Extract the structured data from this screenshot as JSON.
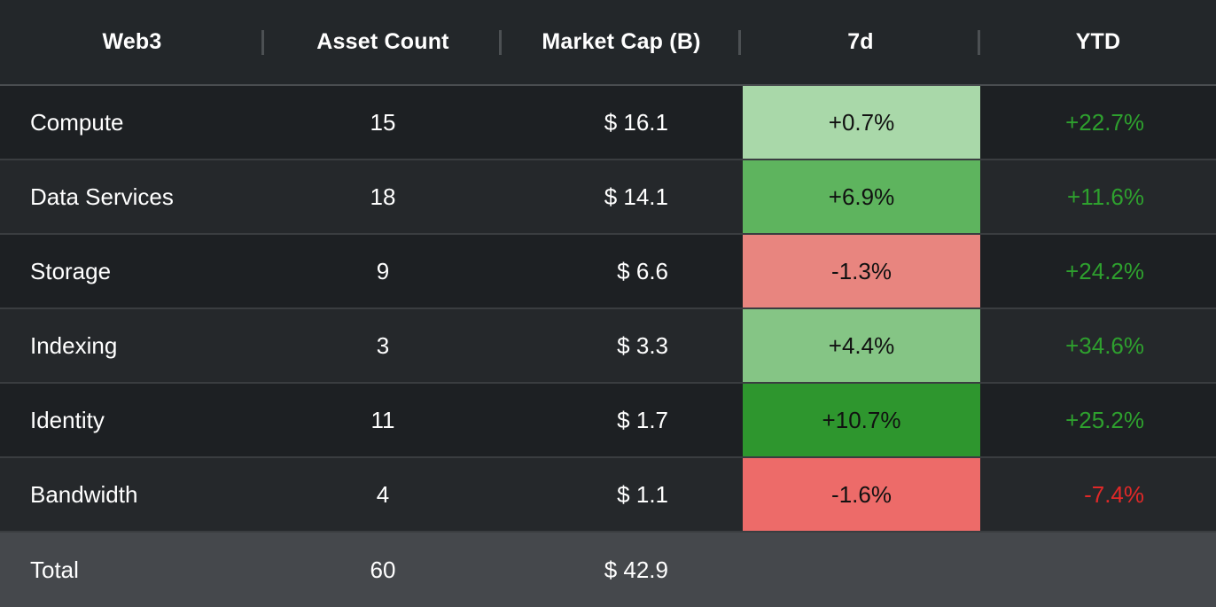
{
  "table": {
    "headers": [
      "Web3",
      "Asset Count",
      "Market Cap (B)",
      "7d",
      "YTD"
    ],
    "rows": [
      {
        "name": "Compute",
        "count": "15",
        "cap": "$ 16.1",
        "d7": "+0.7%",
        "d7_color": "#a9d8a9",
        "ytd": "+22.7%",
        "ytd_sign": "pos"
      },
      {
        "name": "Data Services",
        "count": "18",
        "cap": "$ 14.1",
        "d7": "+6.9%",
        "d7_color": "#5eb45e",
        "ytd": "+11.6%",
        "ytd_sign": "pos"
      },
      {
        "name": "Storage",
        "count": "9",
        "cap": "$ 6.6",
        "d7": "-1.3%",
        "d7_color": "#e8857f",
        "ytd": "+24.2%",
        "ytd_sign": "pos"
      },
      {
        "name": "Indexing",
        "count": "3",
        "cap": "$ 3.3",
        "d7": "+4.4%",
        "d7_color": "#85c585",
        "ytd": "+34.6%",
        "ytd_sign": "pos"
      },
      {
        "name": "Identity",
        "count": "11",
        "cap": "$ 1.7",
        "d7": "+10.7%",
        "d7_color": "#2e962e",
        "ytd": "+25.2%",
        "ytd_sign": "pos"
      },
      {
        "name": "Bandwidth",
        "count": "4",
        "cap": "$ 1.1",
        "d7": "-1.6%",
        "d7_color": "#ed6b69",
        "ytd": "-7.4%",
        "ytd_sign": "neg"
      }
    ],
    "total": {
      "name": "Total",
      "count": "60",
      "cap": "$ 42.9"
    }
  },
  "colors": {
    "background": "#1e2124",
    "header_bg": "#23272a",
    "total_bg": "#45484c",
    "positive_text": "#2ea02e",
    "negative_text": "#e02828"
  }
}
